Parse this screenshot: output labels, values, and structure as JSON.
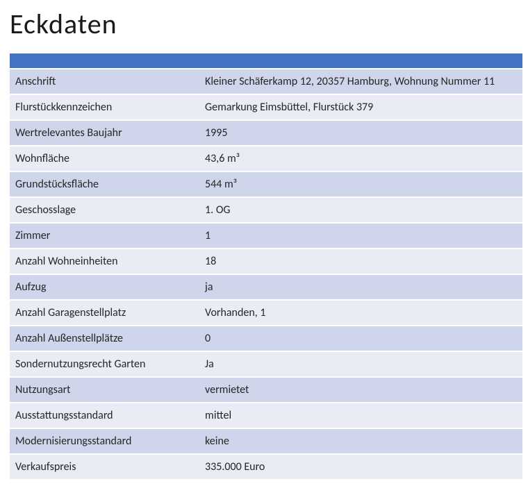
{
  "title": "Eckdaten",
  "colors": {
    "header_bg": "#4472c4",
    "row_odd_bg": "#cfd5ea",
    "row_even_bg": "#e9ebf5",
    "title_color": "#1a1a1a",
    "text_color": "#262626",
    "page_bg": "#ffffff"
  },
  "table": {
    "columns": [
      "label",
      "value"
    ],
    "col_widths": [
      "37%",
      "63%"
    ],
    "rows": [
      {
        "label": "Anschrift",
        "value": "Kleiner Schäferkamp 12, 20357 Hamburg, Wohnung Nummer 11"
      },
      {
        "label": "Flurstückkennzeichen",
        "value": "Gemarkung Eimsbüttel, Flurstück 379"
      },
      {
        "label": "Wertrelevantes Baujahr",
        "value": "1995"
      },
      {
        "label": "Wohnfläche",
        "value": "43,6 m³"
      },
      {
        "label": "Grundstücksfläche",
        "value": "544 m³"
      },
      {
        "label": "Geschosslage",
        "value": "1. OG"
      },
      {
        "label": "Zimmer",
        "value": "1"
      },
      {
        "label": "Anzahl Wohneinheiten",
        "value": "18"
      },
      {
        "label": "Aufzug",
        "value": "ja"
      },
      {
        "label": "Anzahl Garagenstellplatz",
        "value": "Vorhanden, 1"
      },
      {
        "label": "Anzahl Außenstellplätze",
        "value": "0"
      },
      {
        "label": "Sondernutzungsrecht Garten",
        "value": "Ja"
      },
      {
        "label": "Nutzungsart",
        "value": "vermietet"
      },
      {
        "label": "Ausstattungsstandard",
        "value": "mittel"
      },
      {
        "label": "Modernisierungsstandard",
        "value": "keine"
      },
      {
        "label": "Verkaufspreis",
        "value": "335.000 Euro"
      }
    ]
  },
  "typography": {
    "title_fontsize": 40,
    "title_fontweight": 300,
    "cell_fontsize": 16,
    "font_family": "Calibri"
  }
}
